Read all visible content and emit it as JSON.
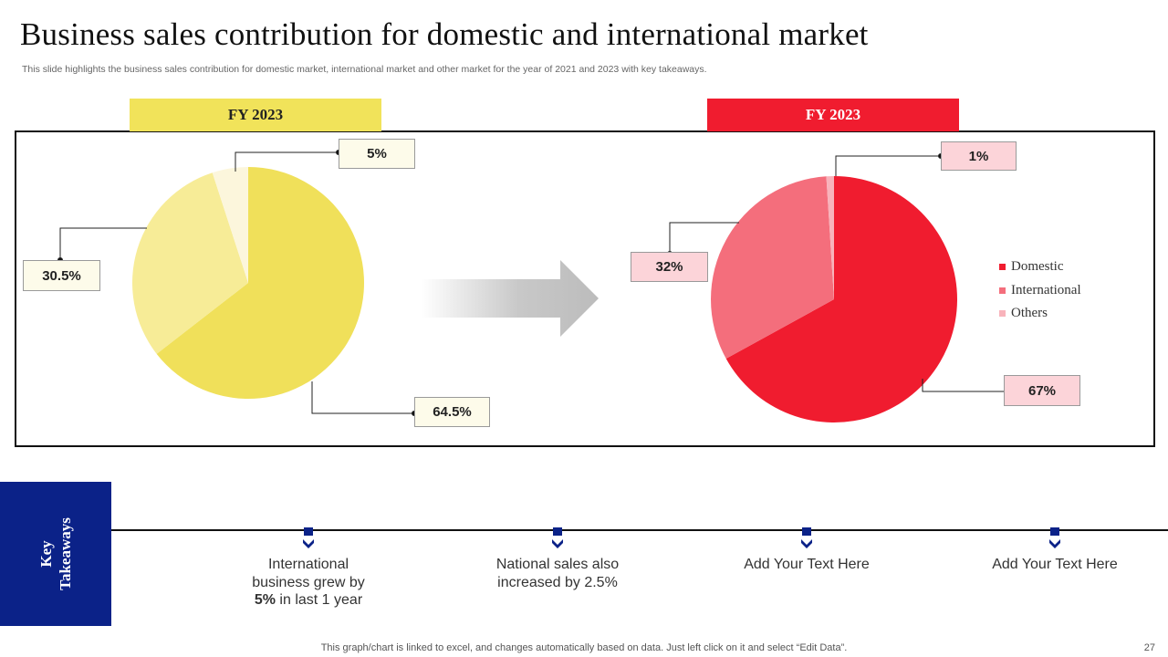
{
  "title": "Business sales contribution  for domestic and international  market",
  "subtitle": "This slide highlights the business sales contribution for domestic market, international market and other market for the year of 2021 and 2023 with key takeaways.",
  "colors": {
    "yellow_dark": "#f0e05a",
    "yellow_mid": "#f7ec97",
    "yellow_light": "#fcf6dc",
    "red_dark": "#f01c2f",
    "red_mid": "#f46e7c",
    "red_light": "#f8b3bb",
    "navy": "#0b2288"
  },
  "chart_data": [
    {
      "type": "pie",
      "title": "FY 2023",
      "categories": [
        "Domestic",
        "International",
        "Others"
      ],
      "values": [
        64.5,
        30.5,
        5
      ],
      "data_labels": [
        "64.5%",
        "30.5%",
        "5%"
      ]
    },
    {
      "type": "pie",
      "title": "FY 2023",
      "categories": [
        "Domestic",
        "International",
        "Others"
      ],
      "values": [
        67,
        32,
        1
      ],
      "data_labels": [
        "67%",
        "32%",
        "1%"
      ],
      "legend": [
        "Domestic",
        "International",
        "Others"
      ],
      "legend_position": "right"
    }
  ],
  "key_takeaways": {
    "heading": "Key Takeaways",
    "heading_lines": [
      "Key",
      "Takeaways"
    ],
    "items": [
      {
        "pre": "International business grew by",
        "bold": "5%",
        "post": " in last 1 year"
      },
      {
        "text": "National sales also increased by 2.5%"
      },
      {
        "text": "Add Your Text Here"
      },
      {
        "text": "Add Your Text Here"
      }
    ]
  },
  "footer": "This graph/chart is linked to excel,  and changes automatically based on data. Just left click on it and select “Edit Data”.",
  "page_number": "27"
}
